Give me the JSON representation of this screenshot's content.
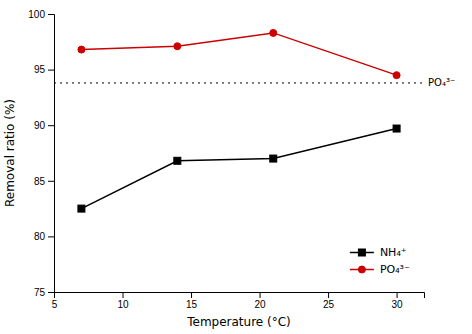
{
  "chart_data": {
    "type": "line",
    "xlabel": "Temperature (°C)",
    "ylabel": "Removal ratio (%)",
    "x": [
      7,
      14,
      21,
      30
    ],
    "series": [
      {
        "name": "NH₄⁺",
        "color": "#000000",
        "marker": "square",
        "values": [
          82.5,
          86.8,
          87.0,
          89.7
        ]
      },
      {
        "name": "PO₄³⁻",
        "color": "#cc0000",
        "marker": "circle",
        "values": [
          96.8,
          97.1,
          98.3,
          94.5
        ]
      }
    ],
    "annotations": [
      {
        "type": "hline",
        "y": 93.8,
        "label": "PO₄³⁻",
        "color": "#000000",
        "line_style": "dotted"
      }
    ],
    "xlim": [
      5,
      32
    ],
    "ylim": [
      75,
      100
    ],
    "xticks": [
      5,
      10,
      15,
      20,
      25,
      30
    ],
    "yticks": [
      75,
      80,
      85,
      90,
      95,
      100
    ],
    "grid": false,
    "legend": "lower right"
  }
}
